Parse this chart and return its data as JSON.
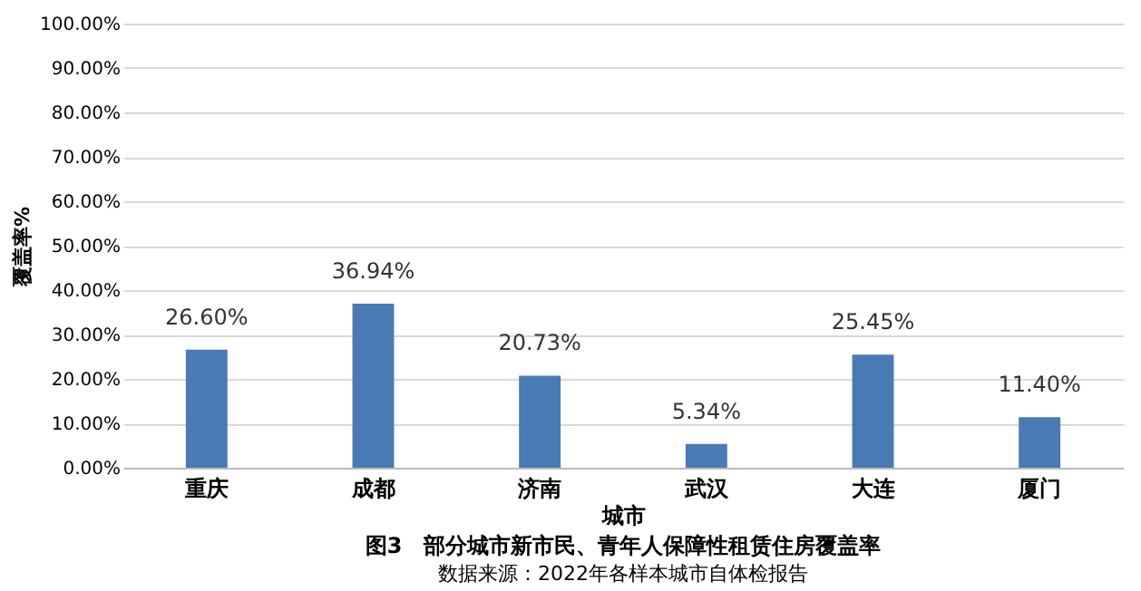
{
  "chart_data": {
    "type": "bar",
    "title": "图3　部分城市新市民、青年人保障性租赁住房覆盖率",
    "annotations": [
      "数据来源：2022年各样本城市自体检报告"
    ],
    "xlabel": "城市",
    "ylabel": "覆盖率%",
    "categories": [
      "重庆",
      "成都",
      "济南",
      "武汉",
      "大连",
      "厦门"
    ],
    "values": [
      26.6,
      36.94,
      20.73,
      5.34,
      25.45,
      11.4
    ],
    "value_labels": [
      "26.60%",
      "36.94%",
      "20.73%",
      "5.34%",
      "25.45%",
      "11.40%"
    ],
    "color": "#4a7ab4",
    "ylim": [
      0,
      100
    ],
    "yticks": [
      {
        "value": 0,
        "label": "0.00%"
      },
      {
        "value": 10,
        "label": "10.00%"
      },
      {
        "value": 20,
        "label": "20.00%"
      },
      {
        "value": 30,
        "label": "30.00%"
      },
      {
        "value": 40,
        "label": "40.00%"
      },
      {
        "value": 50,
        "label": "50.00%"
      },
      {
        "value": 60,
        "label": "60.00%"
      },
      {
        "value": 70,
        "label": "70.00%"
      },
      {
        "value": 80,
        "label": "80.00%"
      },
      {
        "value": 90,
        "label": "90.00%"
      },
      {
        "value": 100,
        "label": "100.00%"
      }
    ],
    "grid": "y"
  }
}
